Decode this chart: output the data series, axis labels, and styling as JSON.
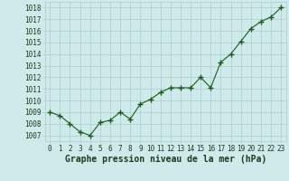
{
  "x": [
    0,
    1,
    2,
    3,
    4,
    5,
    6,
    7,
    8,
    9,
    10,
    11,
    12,
    13,
    14,
    15,
    16,
    17,
    18,
    19,
    20,
    21,
    22,
    23
  ],
  "y": [
    1009.0,
    1008.7,
    1008.0,
    1007.3,
    1007.0,
    1008.1,
    1008.3,
    1009.0,
    1008.4,
    1009.7,
    1010.1,
    1010.7,
    1011.1,
    1011.1,
    1011.1,
    1012.0,
    1011.1,
    1013.3,
    1014.0,
    1015.1,
    1016.2,
    1016.8,
    1017.2,
    1018.0
  ],
  "ylim": [
    1006.5,
    1018.5
  ],
  "yticks": [
    1007,
    1008,
    1009,
    1010,
    1011,
    1012,
    1013,
    1014,
    1015,
    1016,
    1017,
    1018
  ],
  "xticks": [
    0,
    1,
    2,
    3,
    4,
    5,
    6,
    7,
    8,
    9,
    10,
    11,
    12,
    13,
    14,
    15,
    16,
    17,
    18,
    19,
    20,
    21,
    22,
    23
  ],
  "line_color": "#1a5c1a",
  "marker": "+",
  "marker_size": 4,
  "bg_color": "#ceeaea",
  "grid_color": "#aacece",
  "xlabel": "Graphe pression niveau de la mer (hPa)",
  "xlabel_color": "#1a3a1a",
  "xlabel_fontsize": 7.0,
  "tick_fontsize": 5.5,
  "tick_color": "#1a3a1a"
}
